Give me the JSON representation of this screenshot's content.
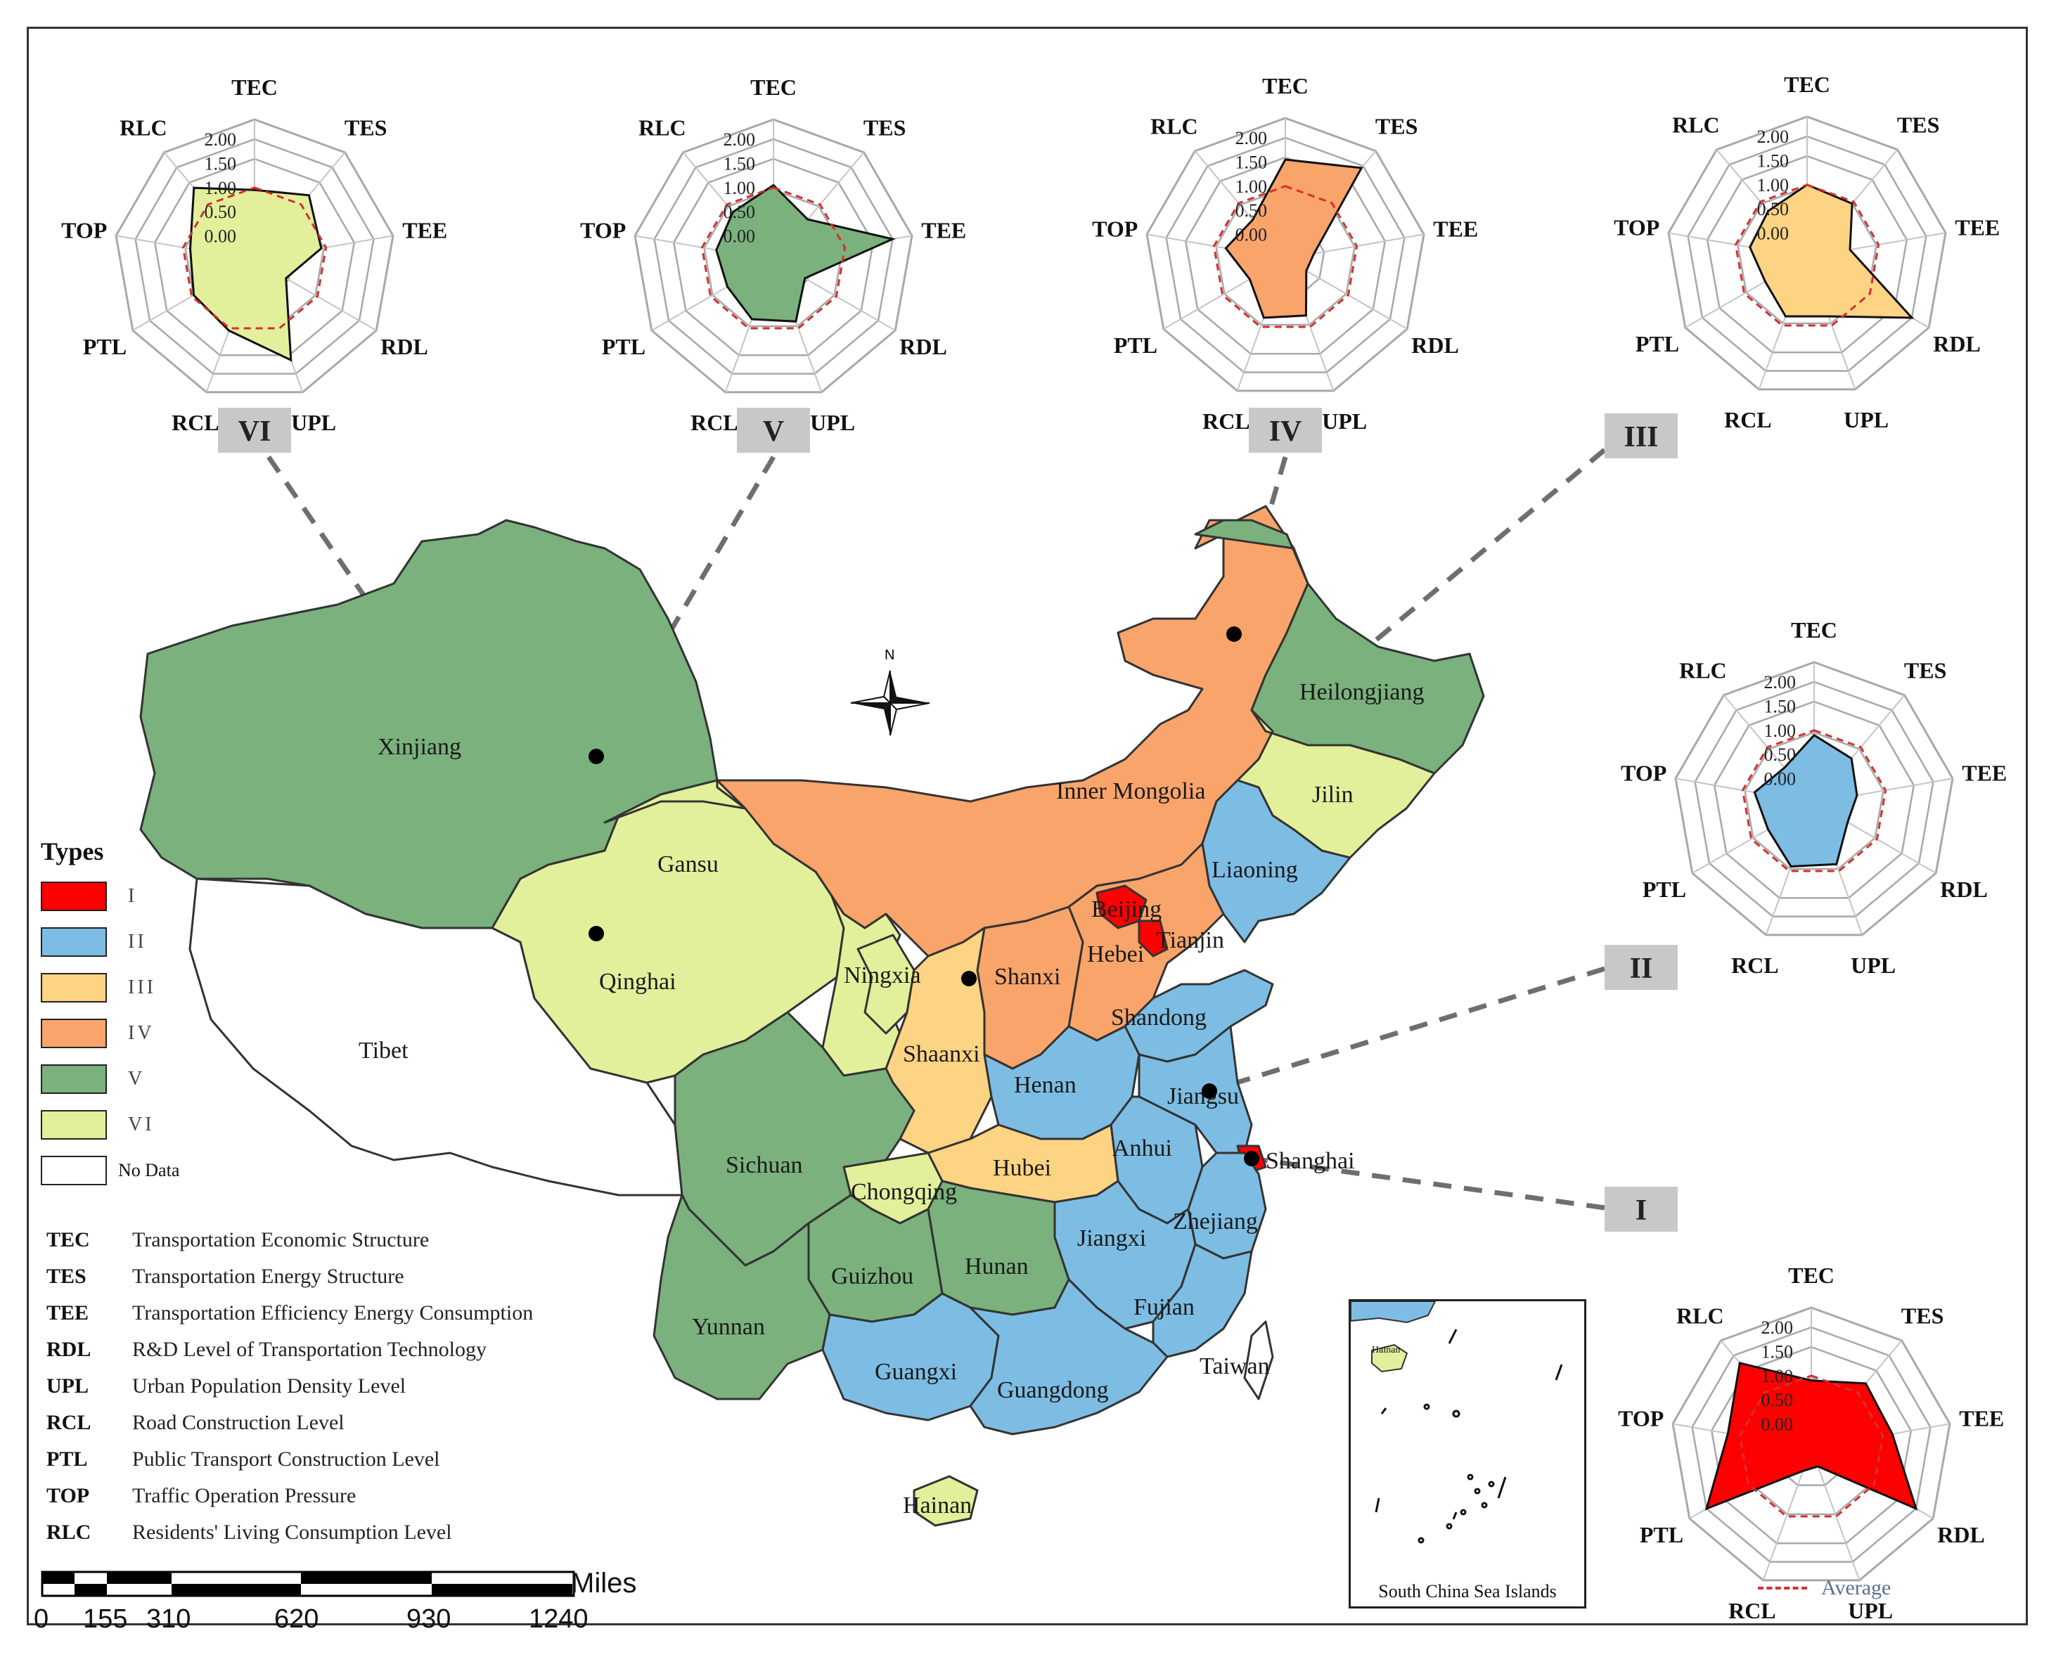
{
  "colors": {
    "type_I": "#ff0000",
    "type_II": "#7dbde3",
    "type_III": "#fdd384",
    "type_IV": "#f9a46a",
    "type_V": "#7ab17d",
    "type_VI": "#e3f09b",
    "no_data": "#ffffff",
    "average_line": "#d43030",
    "connector": "#6e6e6e",
    "label_box": "#c8c8c8"
  },
  "legend": {
    "title": "Types",
    "items": [
      {
        "label": "I",
        "color_key": "type_I"
      },
      {
        "label": "II",
        "color_key": "type_II"
      },
      {
        "label": "III",
        "color_key": "type_III"
      },
      {
        "label": "IV",
        "color_key": "type_IV"
      },
      {
        "label": "V",
        "color_key": "type_V"
      },
      {
        "label": "VI",
        "color_key": "type_VI"
      },
      {
        "label": "No Data",
        "color_key": "no_data"
      }
    ]
  },
  "abbreviations": [
    {
      "code": "TEC",
      "description": "Transportation Economic Structure"
    },
    {
      "code": "TES",
      "description": "Transportation Energy Structure"
    },
    {
      "code": "TEE",
      "description": "Transportation Efficiency Energy Consumption"
    },
    {
      "code": "RDL",
      "description": "R&D Level of Transportation Technology"
    },
    {
      "code": "UPL",
      "description": "Urban Population Density Level"
    },
    {
      "code": "RCL",
      "description": "Road Construction Level"
    },
    {
      "code": "PTL",
      "description": "Public Transport Construction Level"
    },
    {
      "code": "TOP",
      "description": "Traffic Operation Pressure"
    },
    {
      "code": "RLC",
      "description": "Residents' Living Consumption Level"
    }
  ],
  "scale_bar": {
    "unit": "Miles",
    "ticks": [
      "0",
      "155",
      "310",
      "620",
      "930",
      "1240"
    ]
  },
  "north_arrow": "N",
  "inset": {
    "title": "South China Sea Islands",
    "island_label": "Hainan"
  },
  "average_legend": "Average",
  "map_labels": [
    {
      "name": "Xinjiang",
      "type": "V"
    },
    {
      "name": "Tibet",
      "type": "none"
    },
    {
      "name": "Qinghai",
      "type": "VI"
    },
    {
      "name": "Gansu",
      "type": "VI"
    },
    {
      "name": "Ningxia",
      "type": "VI"
    },
    {
      "name": "Inner Mongolia",
      "type": "IV"
    },
    {
      "name": "Heilongjiang",
      "type": "V"
    },
    {
      "name": "Jilin",
      "type": "VI"
    },
    {
      "name": "Liaoning",
      "type": "II"
    },
    {
      "name": "Beijing",
      "type": "I"
    },
    {
      "name": "Tianjin",
      "type": "I"
    },
    {
      "name": "Hebei",
      "type": "IV"
    },
    {
      "name": "Shanxi",
      "type": "IV"
    },
    {
      "name": "Shaanxi",
      "type": "III"
    },
    {
      "name": "Shandong",
      "type": "II"
    },
    {
      "name": "Henan",
      "type": "II"
    },
    {
      "name": "Jiangsu",
      "type": "II"
    },
    {
      "name": "Anhui",
      "type": "II"
    },
    {
      "name": "Shanghai",
      "type": "I"
    },
    {
      "name": "Hubei",
      "type": "III"
    },
    {
      "name": "Sichuan",
      "type": "V"
    },
    {
      "name": "Chongqing",
      "type": "VI"
    },
    {
      "name": "Zhejiang",
      "type": "II"
    },
    {
      "name": "Jiangxi",
      "type": "II"
    },
    {
      "name": "Hunan",
      "type": "V"
    },
    {
      "name": "Guizhou",
      "type": "V"
    },
    {
      "name": "Yunnan",
      "type": "V"
    },
    {
      "name": "Fujian",
      "type": "II"
    },
    {
      "name": "Guangxi",
      "type": "II"
    },
    {
      "name": "Guangdong",
      "type": "II"
    },
    {
      "name": "Taiwan",
      "type": "none"
    },
    {
      "name": "Hainan",
      "type": "VI"
    }
  ],
  "chart_data": [
    {
      "type": "radar",
      "cluster": "VI",
      "color_key": "type_VI",
      "axes": [
        "TEC",
        "TES",
        "TEE",
        "RDL",
        "UPL",
        "RCL",
        "PTL",
        "TOP",
        "RLC"
      ],
      "tick_labels": [
        "2.00",
        "1.50",
        "1.00",
        "0.50",
        "0.00"
      ],
      "range": [
        -0.5,
        2.0
      ],
      "series": [
        {
          "values": [
            0.95,
            1.25,
            0.9,
            0.25,
            1.7,
            1.05,
            0.95,
            0.85,
            1.45
          ]
        },
        {
          "name": "Average",
          "values": [
            1.0,
            1.0,
            1.0,
            1.0,
            1.0,
            1.0,
            1.0,
            1.0,
            1.0
          ]
        }
      ]
    },
    {
      "type": "radar",
      "cluster": "V",
      "color_key": "type_V",
      "axes": [
        "TEC",
        "TES",
        "TEE",
        "RDL",
        "UPL",
        "RCL",
        "PTL",
        "TOP",
        "RLC"
      ],
      "tick_labels": [
        "2.00",
        "1.50",
        "1.00",
        "0.50",
        "0.00"
      ],
      "range": [
        -0.5,
        2.0
      ],
      "series": [
        {
          "values": [
            1.05,
            0.6,
            2.0,
            0.25,
            0.85,
            0.8,
            0.6,
            0.7,
            0.8
          ]
        },
        {
          "name": "Average",
          "values": [
            1.0,
            1.0,
            1.0,
            1.0,
            1.0,
            1.0,
            1.0,
            1.0,
            1.0
          ]
        }
      ]
    },
    {
      "type": "radar",
      "cluster": "IV",
      "color_key": "type_IV",
      "axes": [
        "TEC",
        "TES",
        "TEE",
        "RDL",
        "UPL",
        "RCL",
        "PTL",
        "TOP",
        "RLC"
      ],
      "tick_labels": [
        "2.00",
        "1.50",
        "1.00",
        "0.50",
        "0.00"
      ],
      "range": [
        -0.5,
        2.0
      ],
      "series": [
        {
          "values": [
            1.55,
            1.95,
            0.1,
            0.0,
            0.75,
            0.8,
            0.35,
            0.75,
            0.55
          ]
        },
        {
          "name": "Average",
          "values": [
            1.0,
            1.0,
            1.0,
            1.0,
            1.0,
            1.0,
            1.0,
            1.0,
            1.0
          ]
        }
      ]
    },
    {
      "type": "radar",
      "cluster": "III",
      "color_key": "type_III",
      "axes": [
        "TEC",
        "TES",
        "TEE",
        "RDL",
        "UPL",
        "RCL",
        "PTL",
        "TOP",
        "RLC"
      ],
      "tick_labels": [
        "2.00",
        "1.50",
        "1.00",
        "0.50",
        "0.00"
      ],
      "range": [
        -0.5,
        2.0
      ],
      "series": [
        {
          "values": [
            1.0,
            0.95,
            0.4,
            2.0,
            0.8,
            0.8,
            0.5,
            0.7,
            0.75
          ]
        },
        {
          "name": "Average",
          "values": [
            1.0,
            1.0,
            1.0,
            1.0,
            1.0,
            1.0,
            1.0,
            1.0,
            1.0
          ]
        }
      ]
    },
    {
      "type": "radar",
      "cluster": "II",
      "color_key": "type_II",
      "axes": [
        "TEC",
        "TES",
        "TEE",
        "RDL",
        "UPL",
        "RCL",
        "PTL",
        "TOP",
        "RLC"
      ],
      "tick_labels": [
        "2.00",
        "1.50",
        "1.00",
        "0.50",
        "0.00"
      ],
      "range": [
        -0.5,
        2.0
      ],
      "series": [
        {
          "values": [
            0.9,
            0.7,
            0.4,
            0.3,
            0.85,
            0.9,
            0.6,
            0.75,
            0.45
          ]
        },
        {
          "name": "Average",
          "values": [
            1.0,
            1.0,
            1.0,
            1.0,
            1.0,
            1.0,
            1.0,
            1.0,
            1.0
          ]
        }
      ]
    },
    {
      "type": "radar",
      "cluster": "I",
      "color_key": "type_I",
      "axes": [
        "TEC",
        "TES",
        "TEE",
        "RDL",
        "UPL",
        "RCL",
        "PTL",
        "TOP",
        "RLC"
      ],
      "tick_labels": [
        "2.00",
        "1.50",
        "1.00",
        "0.50",
        "0.00"
      ],
      "range": [
        -0.5,
        2.0
      ],
      "series": [
        {
          "values": [
            0.9,
            1.25,
            1.2,
            2.0,
            -0.1,
            0.0,
            2.0,
            1.25,
            1.8
          ]
        },
        {
          "name": "Average",
          "values": [
            1.0,
            1.0,
            1.0,
            1.0,
            1.0,
            1.0,
            1.0,
            1.0,
            1.0
          ]
        }
      ]
    }
  ]
}
